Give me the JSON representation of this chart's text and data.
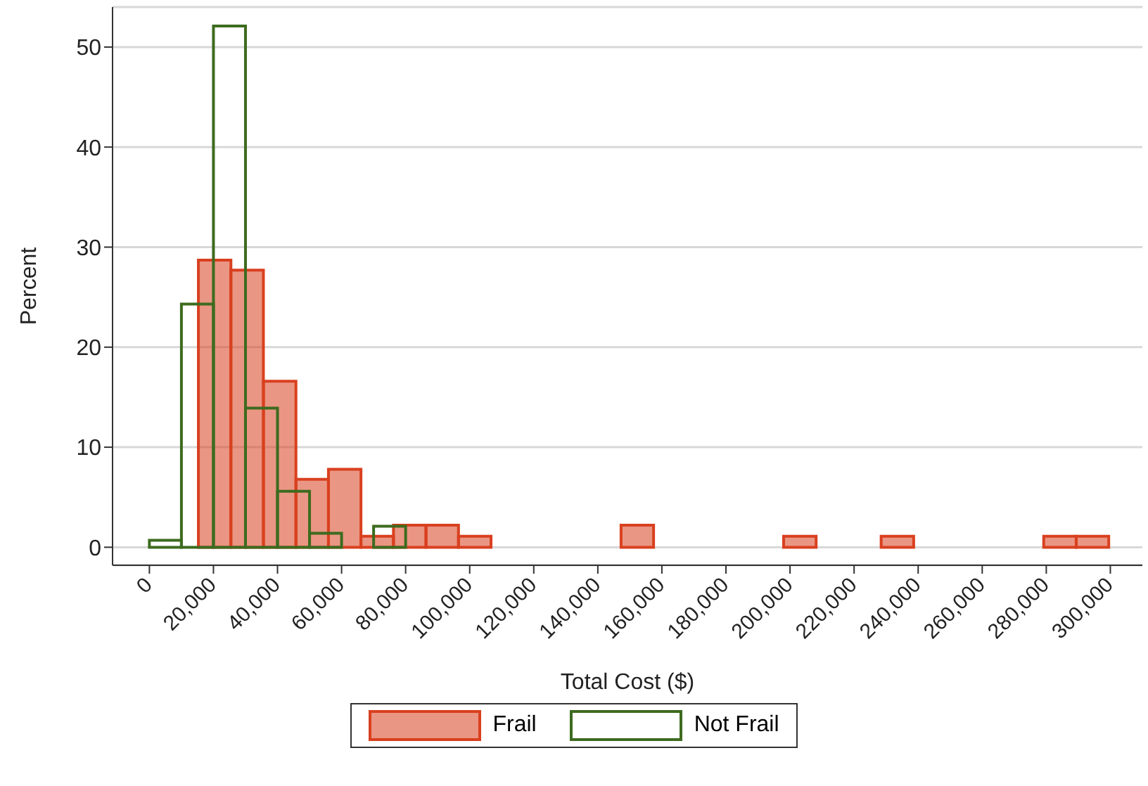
{
  "chart_data": {
    "type": "bar",
    "xlabel": "Total Cost ($)",
    "ylabel": "Percent",
    "xlim": [
      -11500,
      310000
    ],
    "ylim": [
      -1.8,
      54
    ],
    "xticks": [
      {
        "value": 0,
        "label": "0"
      },
      {
        "value": 20000,
        "label": "20,000"
      },
      {
        "value": 40000,
        "label": "40,000"
      },
      {
        "value": 60000,
        "label": "60,000"
      },
      {
        "value": 80000,
        "label": "80,000"
      },
      {
        "value": 100000,
        "label": "100,000"
      },
      {
        "value": 120000,
        "label": "120,000"
      },
      {
        "value": 140000,
        "label": "140,000"
      },
      {
        "value": 160000,
        "label": "160,000"
      },
      {
        "value": 180000,
        "label": "180,000"
      },
      {
        "value": 200000,
        "label": "200,000"
      },
      {
        "value": 220000,
        "label": "220,000"
      },
      {
        "value": 240000,
        "label": "240,000"
      },
      {
        "value": 260000,
        "label": "260,000"
      },
      {
        "value": 280000,
        "label": "280,000"
      },
      {
        "value": 300000,
        "label": "300,000"
      }
    ],
    "yticks": [
      0,
      10,
      20,
      30,
      40,
      50
    ],
    "grid": "y",
    "legend": "bottom",
    "series": [
      {
        "name": "Frail",
        "color": "#d9401f",
        "x": [
          20375,
          30525,
          40675,
          50825,
          60975,
          71125,
          81275,
          91425,
          101575,
          111725,
          121875,
          132025,
          142175,
          152325,
          162475,
          172625,
          182775,
          192925,
          203075,
          213225,
          223375,
          233525,
          243675,
          253825,
          263975,
          274125,
          284275,
          294425
        ],
        "values": [
          28.7,
          27.7,
          16.6,
          6.8,
          7.8,
          1.1,
          2.2,
          2.2,
          1.1,
          0,
          0,
          0,
          0,
          2.2,
          0,
          0,
          0,
          0,
          1.1,
          0,
          0,
          1.1,
          0,
          0,
          0,
          0,
          1.1,
          1.1
        ]
      },
      {
        "name": "Not Frail",
        "color": "#3d6b1f",
        "x": [
          5000,
          15000,
          25000,
          35000,
          45000,
          55000,
          65000,
          75000
        ],
        "values": [
          0.7,
          24.3,
          52.1,
          13.9,
          5.6,
          1.4,
          0,
          2.1
        ]
      }
    ]
  }
}
